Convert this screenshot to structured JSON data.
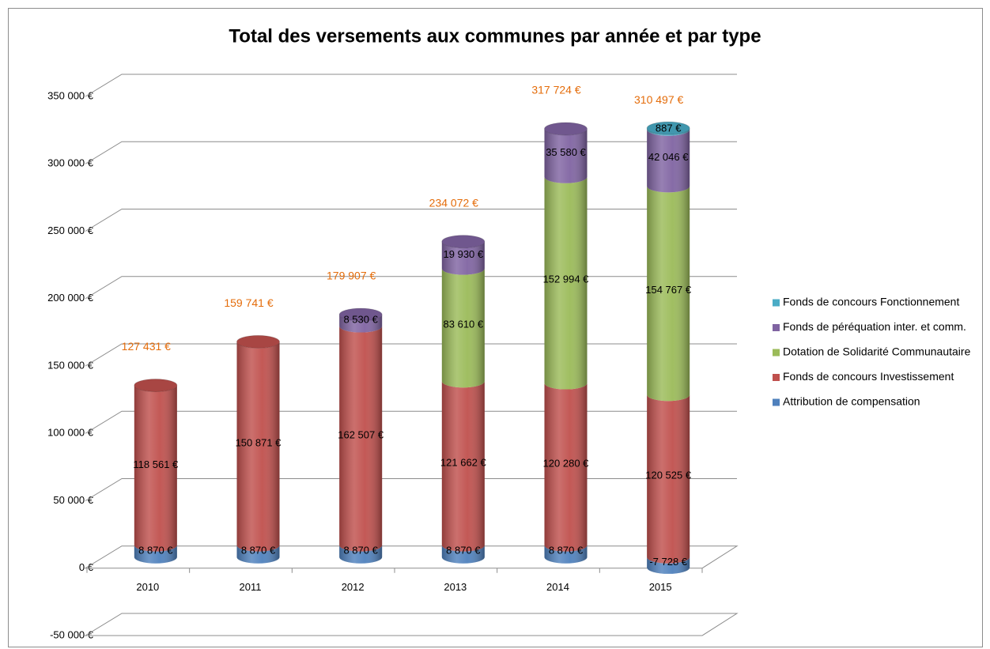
{
  "chart_data": {
    "type": "bar3d-stacked",
    "title": "Total des versements aux communes par année et par type",
    "categories": [
      "2010",
      "2011",
      "2012",
      "2013",
      "2014",
      "2015"
    ],
    "series": [
      {
        "name": "Attribution de compensation",
        "color": "#4f81bd",
        "values": [
          8870,
          8870,
          8870,
          8870,
          8870,
          -7728
        ],
        "value_labels": [
          "8 870 €",
          "8 870 €",
          "8 870 €",
          "8 870 €",
          "8 870 €",
          "-7 728 €"
        ]
      },
      {
        "name": "Fonds de concours Investissement",
        "color": "#c0504d",
        "values": [
          118561,
          150871,
          162507,
          121662,
          120280,
          120525
        ],
        "value_labels": [
          "118 561 €",
          "150 871 €",
          "162 507 €",
          "121 662 €",
          "120 280 €",
          "120 525 €"
        ]
      },
      {
        "name": "Dotation de Solidarité Communautaire",
        "color": "#9bbb59",
        "values": [
          null,
          null,
          null,
          83610,
          152994,
          154767
        ],
        "value_labels": [
          null,
          null,
          null,
          "83 610 €",
          "152 994 €",
          "154 767 €"
        ]
      },
      {
        "name": "Fonds de péréquation inter. et comm.",
        "color": "#8064a2",
        "values": [
          null,
          null,
          8530,
          19930,
          35580,
          42046
        ],
        "value_labels": [
          null,
          null,
          "8 530 €",
          "19 930 €",
          "35 580 €",
          "42 046 €"
        ]
      },
      {
        "name": "Fonds de concours Fonctionnement",
        "color": "#4bacc6",
        "values": [
          null,
          null,
          null,
          null,
          null,
          887
        ],
        "value_labels": [
          null,
          null,
          null,
          null,
          null,
          "887 €"
        ]
      }
    ],
    "totals": {
      "color": "#e46c0a",
      "values": [
        127431,
        159741,
        179907,
        234072,
        317724,
        310497
      ],
      "value_labels": [
        "127 431 €",
        "159 741 €",
        "179 907 €",
        "234 072 €",
        "317 724 €",
        "310 497 €"
      ]
    },
    "ylim": [
      -50000,
      350000
    ],
    "yticks": [
      {
        "value": -50000,
        "label": "-50 000 €"
      },
      {
        "value": 0,
        "label": "0 €"
      },
      {
        "value": 50000,
        "label": "50 000 €"
      },
      {
        "value": 100000,
        "label": "100 000 €"
      },
      {
        "value": 150000,
        "label": "150 000 €"
      },
      {
        "value": 200000,
        "label": "200 000 €"
      },
      {
        "value": 250000,
        "label": "250 000 €"
      },
      {
        "value": 300000,
        "label": "300 000 €"
      },
      {
        "value": 350000,
        "label": "350 000 €"
      }
    ],
    "grid": true,
    "legend": "right"
  }
}
